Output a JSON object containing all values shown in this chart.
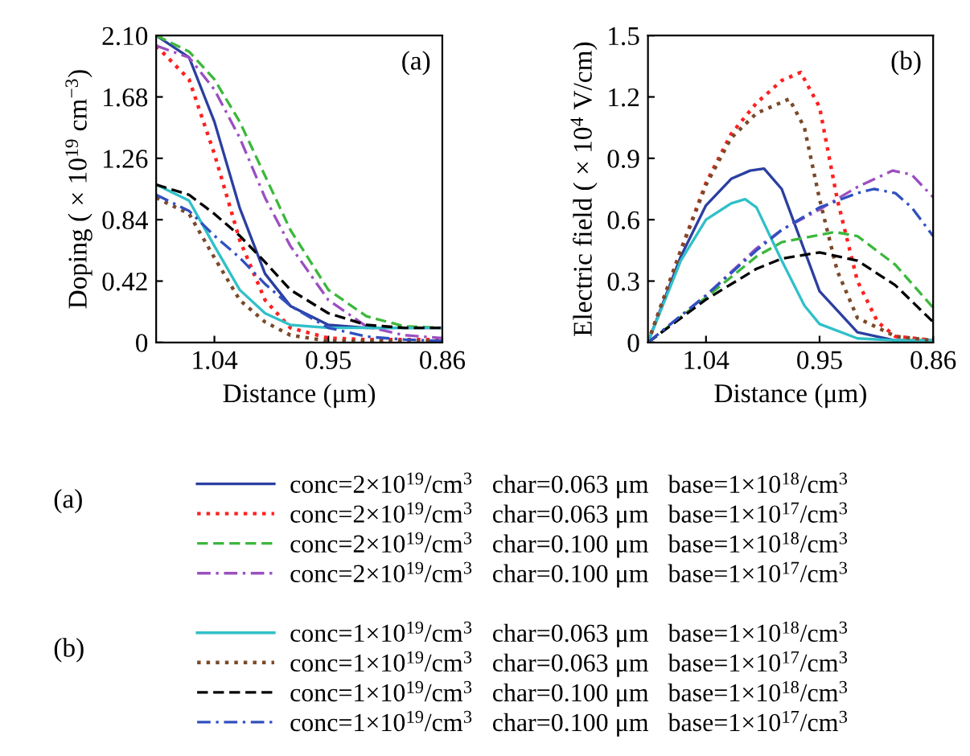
{
  "chart_data": [
    {
      "type": "line",
      "title": "(a)",
      "xlabel": "Distance (μm)",
      "ylabel": "Doping ( × 10$^{19}$ cm$^{−3}$)",
      "xlim": [
        1.086,
        0.86
      ],
      "xticks": [
        1.04,
        0.95,
        0.86
      ],
      "ylim": [
        0,
        2.1
      ],
      "yticks": [
        0,
        0.42,
        0.84,
        1.26,
        1.68,
        {
          "value": 2.1,
          "label": "2.10"
        }
      ],
      "grid": false,
      "legend": "bottom",
      "annotations": [
        "(a)",
        "(b)"
      ],
      "series": [
        {
          "name": "conc=2×10$^{19}$/cm$^{3}$   char=0.063 μm   base=1×10$^{18}$/cm$^{3}$",
          "color": "#2b3fa0",
          "line_style": "solid",
          "x": [
            1.086,
            1.06,
            1.04,
            1.02,
            1.0,
            0.98,
            0.95,
            0.92,
            0.89,
            0.86
          ],
          "values": [
            2.1,
            1.95,
            1.51,
            0.92,
            0.47,
            0.25,
            0.12,
            0.1,
            0.1,
            0.1
          ]
        },
        {
          "name": "conc=2×10$^{19}$/cm$^{3}$   char=0.063 μm   base=1×10$^{17}$/cm$^{3}$",
          "color": "#ff2020",
          "line_style": "dotted",
          "x": [
            1.086,
            1.06,
            1.04,
            1.02,
            1.0,
            0.98,
            0.95,
            0.92,
            0.89,
            0.86
          ],
          "values": [
            2.03,
            1.8,
            1.29,
            0.7,
            0.29,
            0.1,
            0.03,
            0.02,
            0.02,
            0.02
          ]
        },
        {
          "name": "conc=2×10$^{19}$/cm$^{3}$   char=0.100 μm   base=1×10$^{18}$/cm$^{3}$",
          "color": "#3cb83c",
          "line_style": "dashed",
          "x": [
            1.086,
            1.06,
            1.04,
            1.02,
            1.0,
            0.98,
            0.95,
            0.92,
            0.89,
            0.86
          ],
          "values": [
            2.1,
            1.99,
            1.8,
            1.51,
            1.14,
            0.77,
            0.36,
            0.18,
            0.11,
            0.1
          ]
        },
        {
          "name": "conc=2×10$^{19}$/cm$^{3}$   char=0.100 μm   base=1×10$^{17}$/cm$^{3}$",
          "color": "#9b4fc0",
          "line_style": "dashdot",
          "x": [
            1.086,
            1.06,
            1.04,
            1.02,
            1.0,
            0.98,
            0.95,
            0.92,
            0.89,
            0.86
          ],
          "values": [
            2.03,
            1.95,
            1.73,
            1.4,
            0.99,
            0.66,
            0.29,
            0.11,
            0.05,
            0.03
          ]
        },
        {
          "name": "conc=1×10$^{19}$/cm$^{3}$   char=0.063 μm   base=1×10$^{18}$/cm$^{3}$",
          "color": "#30c0c8",
          "line_style": "solid",
          "x": [
            1.086,
            1.06,
            1.04,
            1.02,
            1.0,
            0.98,
            0.95,
            0.92,
            0.89,
            0.86
          ],
          "values": [
            1.08,
            0.97,
            0.66,
            0.36,
            0.2,
            0.12,
            0.1,
            0.1,
            0.1,
            0.1
          ]
        },
        {
          "name": "conc=1×10$^{19}$/cm$^{3}$   char=0.063 μm   base=1×10$^{17}$/cm$^{3}$",
          "color": "#7a4a2a",
          "line_style": "dotted",
          "x": [
            1.086,
            1.06,
            1.04,
            1.02,
            1.0,
            0.98,
            0.95,
            0.92,
            0.89,
            0.86
          ],
          "values": [
            0.99,
            0.88,
            0.58,
            0.29,
            0.14,
            0.05,
            0.01,
            0.01,
            0.01,
            0.01
          ]
        },
        {
          "name": "conc=1×10$^{19}$/cm$^{3}$   char=0.100 μm   base=1×10$^{18}$/cm$^{3}$",
          "color": "#000000",
          "line_style": "dashed",
          "x": [
            1.086,
            1.06,
            1.04,
            1.02,
            1.0,
            0.98,
            0.95,
            0.92,
            0.89,
            0.86
          ],
          "values": [
            1.08,
            1.01,
            0.88,
            0.73,
            0.55,
            0.36,
            0.2,
            0.12,
            0.1,
            0.1
          ]
        },
        {
          "name": "conc=1×10$^{19}$/cm$^{3}$   char=0.100 μm   base=1×10$^{17}$/cm$^{3}$",
          "color": "#3050c0",
          "line_style": "dashdot",
          "x": [
            1.086,
            1.06,
            1.04,
            1.02,
            1.0,
            0.98,
            0.95,
            0.92,
            0.89,
            0.86
          ],
          "values": [
            1.01,
            0.9,
            0.73,
            0.58,
            0.4,
            0.25,
            0.1,
            0.04,
            0.02,
            0.01
          ]
        }
      ]
    },
    {
      "type": "line",
      "title": "(b)",
      "xlabel": "Distance (μm)",
      "ylabel": "Electric field ( × 10$^{4}$ V/cm)",
      "xlim": [
        1.086,
        0.86
      ],
      "xticks": [
        1.04,
        0.95,
        0.86
      ],
      "ylim": [
        0,
        1.5
      ],
      "yticks": [
        0,
        0.3,
        0.6,
        0.9,
        1.2,
        1.5
      ],
      "grid": false,
      "series": [
        {
          "color": "#2b3fa0",
          "line_style": "solid",
          "x": [
            1.086,
            1.06,
            1.04,
            1.02,
            1.005,
            0.994,
            0.98,
            0.962,
            0.95,
            0.92,
            0.89,
            0.86
          ],
          "values": [
            0,
            0.42,
            0.67,
            0.8,
            0.84,
            0.85,
            0.75,
            0.45,
            0.25,
            0.05,
            0.01,
            0.01
          ]
        },
        {
          "color": "#ff2020",
          "line_style": "dotted",
          "x": [
            1.086,
            1.06,
            1.04,
            1.02,
            1.0,
            0.98,
            0.965,
            0.95,
            0.936,
            0.92,
            0.904,
            0.89,
            0.86
          ],
          "values": [
            0,
            0.45,
            0.78,
            1.02,
            1.17,
            1.28,
            1.32,
            1.15,
            0.7,
            0.3,
            0.1,
            0.03,
            0.01
          ]
        },
        {
          "color": "#3cb83c",
          "line_style": "dashed",
          "x": [
            1.086,
            1.04,
            1.0,
            0.98,
            0.938,
            0.92,
            0.89,
            0.86
          ],
          "values": [
            0,
            0.22,
            0.42,
            0.49,
            0.54,
            0.52,
            0.38,
            0.17
          ]
        },
        {
          "color": "#9b4fc0",
          "line_style": "dashdot",
          "x": [
            1.086,
            1.04,
            1.0,
            0.98,
            0.95,
            0.92,
            0.892,
            0.877,
            0.86
          ],
          "values": [
            0,
            0.23,
            0.46,
            0.55,
            0.65,
            0.76,
            0.84,
            0.82,
            0.71
          ]
        },
        {
          "color": "#30c0c8",
          "line_style": "solid",
          "x": [
            1.086,
            1.06,
            1.04,
            1.02,
            1.009,
            1.0,
            0.98,
            0.962,
            0.95,
            0.92,
            0.89,
            0.86
          ],
          "values": [
            0,
            0.4,
            0.6,
            0.68,
            0.7,
            0.66,
            0.4,
            0.18,
            0.09,
            0.02,
            0.01,
            0.01
          ]
        },
        {
          "color": "#7a4a2a",
          "line_style": "dotted",
          "x": [
            1.086,
            1.06,
            1.04,
            1.02,
            1.0,
            0.974,
            0.962,
            0.95,
            0.936,
            0.92,
            0.89,
            0.86
          ],
          "values": [
            0,
            0.45,
            0.77,
            1.0,
            1.12,
            1.19,
            1.05,
            0.7,
            0.35,
            0.12,
            0.03,
            0.01
          ]
        },
        {
          "color": "#000000",
          "line_style": "dashed",
          "x": [
            1.086,
            1.04,
            1.0,
            0.98,
            0.95,
            0.92,
            0.89,
            0.86
          ],
          "values": [
            0,
            0.21,
            0.36,
            0.41,
            0.44,
            0.4,
            0.28,
            0.1
          ]
        },
        {
          "color": "#3050c0",
          "line_style": "dashdot",
          "x": [
            1.086,
            1.04,
            1.0,
            0.98,
            0.95,
            0.92,
            0.907,
            0.89,
            0.877,
            0.86
          ],
          "values": [
            0,
            0.23,
            0.45,
            0.55,
            0.66,
            0.73,
            0.75,
            0.73,
            0.66,
            0.52
          ]
        }
      ]
    }
  ]
}
